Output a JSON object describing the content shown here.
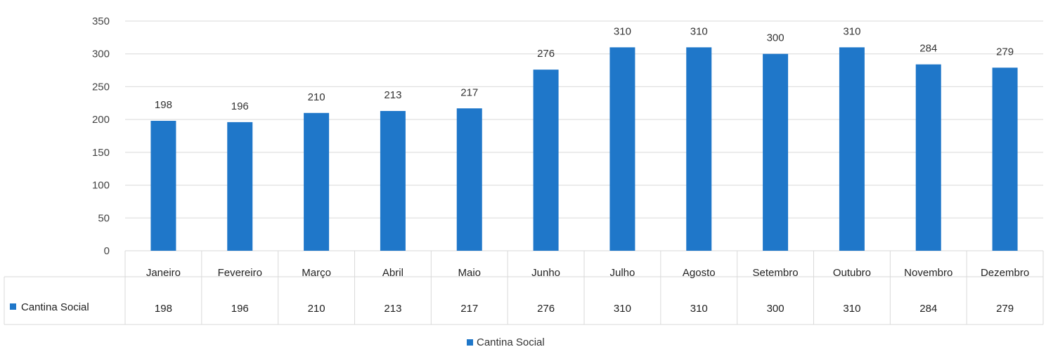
{
  "chart_data": {
    "type": "bar",
    "title": "",
    "xlabel": "",
    "ylabel": "",
    "ylim": [
      0,
      350
    ],
    "yticks": [
      0,
      50,
      100,
      150,
      200,
      250,
      300,
      350
    ],
    "grid": true,
    "legend_position": "bottom-center",
    "data_table": true,
    "categories": [
      "Janeiro",
      "Fevereiro",
      "Março",
      "Abril",
      "Maio",
      "Junho",
      "Julho",
      "Agosto",
      "Setembro",
      "Outubro",
      "Novembro",
      "Dezembro"
    ],
    "series": [
      {
        "name": "Cantina Social",
        "color": "#1f77c9",
        "values": [
          198,
          196,
          210,
          213,
          217,
          276,
          310,
          310,
          300,
          310,
          284,
          279
        ]
      }
    ]
  }
}
